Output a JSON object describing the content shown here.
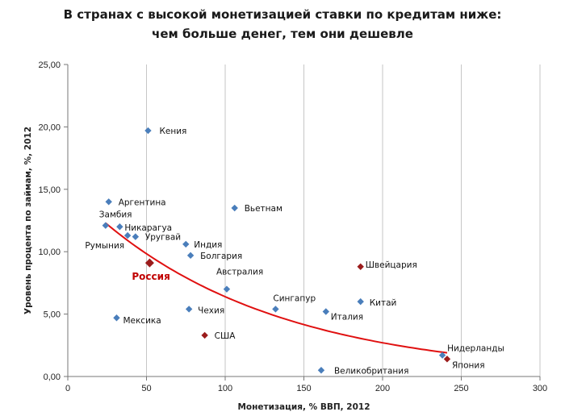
{
  "title_line1": "В странах с высокой монетизацией ставки по кредитам ниже:",
  "title_line2": "чем больше денег, тем они дешевле",
  "chart_data": {
    "type": "scatter",
    "xlabel": "Монетизация,  % ВВП,  2012",
    "ylabel": "Уровень процента  по займам,  %,  2012",
    "xlim": [
      0,
      300
    ],
    "ylim": [
      0,
      25
    ],
    "x_ticks": [
      "0",
      "50",
      "100",
      "150",
      "200",
      "250",
      "300"
    ],
    "y_ticks": [
      "0,00",
      "5,00",
      "10,00",
      "15,00",
      "20,00",
      "25,00"
    ],
    "grid": "vertical",
    "colors": {
      "default": "#4a7ebb",
      "highlight": "#9b1c1c",
      "trend": "#e01010"
    },
    "points": [
      {
        "label": "Кения",
        "x": 51,
        "y": 19.7,
        "color": "default"
      },
      {
        "label": "Аргентина",
        "x": 26,
        "y": 14.0,
        "color": "default"
      },
      {
        "label": "Вьетнам",
        "x": 106,
        "y": 13.5,
        "color": "default"
      },
      {
        "label": "Замбия",
        "x": 24,
        "y": 12.1,
        "color": "default"
      },
      {
        "label": "Никарагуа",
        "x": 33,
        "y": 12.0,
        "color": "default"
      },
      {
        "label": "Уругвай",
        "x": 43,
        "y": 11.2,
        "color": "default"
      },
      {
        "label": "Румыния",
        "x": 38,
        "y": 11.3,
        "color": "default"
      },
      {
        "label": "Индия",
        "x": 75,
        "y": 10.6,
        "color": "default"
      },
      {
        "label": "Болгария",
        "x": 78,
        "y": 9.7,
        "color": "default"
      },
      {
        "label": "Россия",
        "x": 52,
        "y": 9.1,
        "color": "highlight",
        "emphasis": true
      },
      {
        "label": "Швейцария",
        "x": 186,
        "y": 8.8,
        "color": "highlight"
      },
      {
        "label": "Австралия",
        "x": 101,
        "y": 7.0,
        "color": "default"
      },
      {
        "label": "Китай",
        "x": 186,
        "y": 6.0,
        "color": "default"
      },
      {
        "label": "Чехия",
        "x": 77,
        "y": 5.4,
        "color": "default"
      },
      {
        "label": "Сингапур",
        "x": 132,
        "y": 5.4,
        "color": "default"
      },
      {
        "label": "Италия",
        "x": 164,
        "y": 5.2,
        "color": "default"
      },
      {
        "label": "Мексика",
        "x": 31,
        "y": 4.7,
        "color": "default"
      },
      {
        "label": "США",
        "x": 87,
        "y": 3.3,
        "color": "highlight"
      },
      {
        "label": "Нидерланды",
        "x": 238,
        "y": 1.7,
        "color": "default"
      },
      {
        "label": "Япония",
        "x": 241,
        "y": 1.4,
        "color": "highlight"
      },
      {
        "label": "Великобритания",
        "x": 161,
        "y": 0.5,
        "color": "default"
      }
    ],
    "trendline": {
      "type": "curve",
      "x_range": [
        24,
        241
      ],
      "y_at_start": 12.3,
      "y_at_end": 1.9
    }
  }
}
